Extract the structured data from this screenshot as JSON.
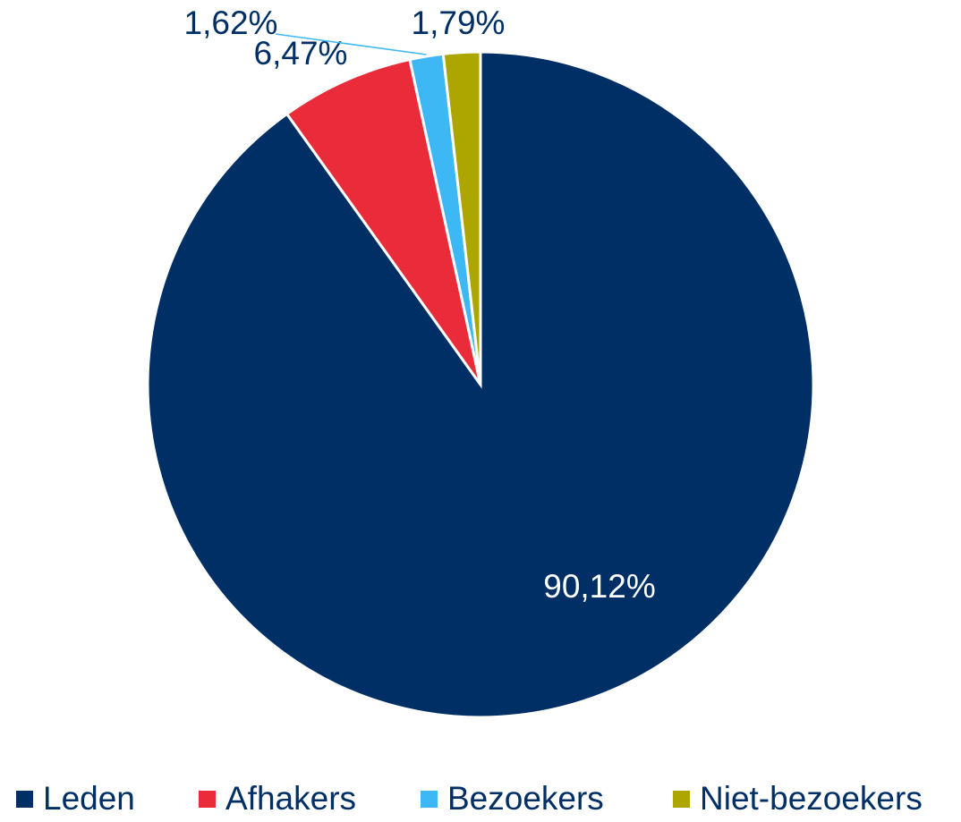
{
  "chart_data": {
    "type": "pie",
    "categories": [
      "Leden",
      "Afhakers",
      "Bezoekers",
      "Niet-bezoekers"
    ],
    "values": [
      90.12,
      6.47,
      1.62,
      1.79
    ],
    "value_labels": [
      "90,12%",
      "6,47%",
      "1,62%",
      "1,79%"
    ],
    "colors": [
      "#002f66",
      "#e92b3a",
      "#3db8f5",
      "#aea600"
    ],
    "legend": "bottom"
  }
}
